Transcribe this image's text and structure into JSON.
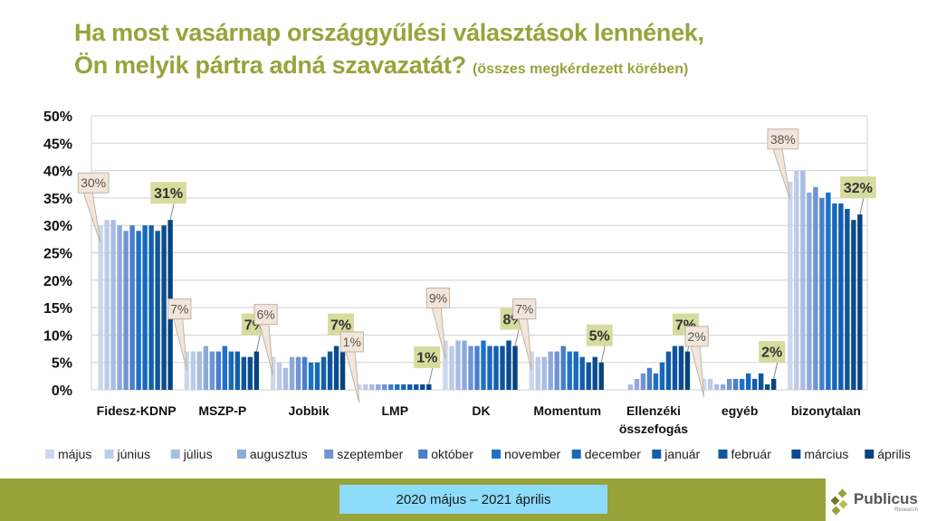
{
  "title": {
    "line1": "Ha most vasárnap országgyűlési választások lennének,",
    "line2": "Ön melyik pártra adná szavazatát?",
    "subtitle": "(összes megkérdezett körében)"
  },
  "footer": {
    "period": "2020 május – 2021 április",
    "logo_name": "Publicus",
    "logo_sub": "Research"
  },
  "colors": {
    "title": "#98a33a",
    "footer_bar": "#98a33a",
    "period_box": "#8ddcfb",
    "callout_first_bg": "#f2e6da",
    "callout_last_bg": "#d6dc9d"
  },
  "chart_data": {
    "type": "bar",
    "title": "Ha most vasárnap országgyűlési választások lennének, Ön melyik pártra adná szavazatát?",
    "xlabel": "",
    "ylabel": "",
    "ylim": [
      0,
      50
    ],
    "yticks": [
      "0%",
      "5%",
      "10%",
      "15%",
      "20%",
      "25%",
      "30%",
      "35%",
      "40%",
      "45%",
      "50%"
    ],
    "ytick_step": 5,
    "grid": true,
    "legend_position": "bottom",
    "categories": [
      [
        "Fidesz-KDNP"
      ],
      [
        "MSZP-P"
      ],
      [
        "Jobbik"
      ],
      [
        "LMP"
      ],
      [
        "DK"
      ],
      [
        "Momentum"
      ],
      [
        "Ellenzéki",
        "összefogás"
      ],
      [
        "egyéb"
      ],
      [
        "bizonytalan"
      ]
    ],
    "series": [
      {
        "name": "május",
        "color": "#cdd7ec",
        "values": [
          30,
          7,
          6,
          1,
          9,
          7,
          null,
          2,
          38
        ]
      },
      {
        "name": "június",
        "color": "#bccbe8",
        "values": [
          31,
          7,
          5,
          1,
          8,
          6,
          null,
          2,
          40
        ]
      },
      {
        "name": "július",
        "color": "#a9bce2",
        "values": [
          31,
          7,
          4,
          1,
          9,
          6,
          1,
          1,
          40
        ]
      },
      {
        "name": "augusztus",
        "color": "#8eaadb",
        "values": [
          30,
          8,
          6,
          1,
          9,
          7,
          2,
          1,
          36
        ]
      },
      {
        "name": "szeptember",
        "color": "#6f93d4",
        "values": [
          29,
          7,
          6,
          1,
          8,
          7,
          3,
          2,
          37
        ]
      },
      {
        "name": "október",
        "color": "#4a7dcb",
        "values": [
          30,
          7,
          6,
          1,
          8,
          8,
          4,
          2,
          35
        ]
      },
      {
        "name": "november",
        "color": "#1c72c8",
        "values": [
          29,
          8,
          5,
          1,
          9,
          7,
          3,
          2,
          36
        ]
      },
      {
        "name": "december",
        "color": "#1868bb",
        "values": [
          30,
          7,
          5,
          1,
          8,
          7,
          5,
          3,
          34
        ]
      },
      {
        "name": "január",
        "color": "#135eac",
        "values": [
          30,
          7,
          6,
          1,
          8,
          6,
          7,
          2,
          34
        ]
      },
      {
        "name": "február",
        "color": "#0f559d",
        "values": [
          29,
          6,
          7,
          1,
          8,
          5,
          8,
          3,
          33
        ]
      },
      {
        "name": "március",
        "color": "#0b4c8f",
        "values": [
          30,
          6,
          8,
          1,
          9,
          6,
          8,
          1,
          31
        ]
      },
      {
        "name": "április",
        "color": "#08437f",
        "values": [
          31,
          7,
          7,
          1,
          8,
          5,
          7,
          2,
          32
        ]
      }
    ],
    "annotations": [
      {
        "category": 0,
        "series": 0,
        "text": "30%",
        "style": "first"
      },
      {
        "category": 0,
        "series": 11,
        "text": "31%",
        "style": "last"
      },
      {
        "category": 1,
        "series": 0,
        "text": "7%",
        "style": "first"
      },
      {
        "category": 1,
        "series": 11,
        "text": "7%",
        "style": "last"
      },
      {
        "category": 2,
        "series": 0,
        "text": "6%",
        "style": "first"
      },
      {
        "category": 2,
        "series": 11,
        "text": "7%",
        "style": "last"
      },
      {
        "category": 3,
        "series": 0,
        "text": "1%",
        "style": "first"
      },
      {
        "category": 3,
        "series": 11,
        "text": "1%",
        "style": "last"
      },
      {
        "category": 4,
        "series": 0,
        "text": "9%",
        "style": "first"
      },
      {
        "category": 4,
        "series": 11,
        "text": "8%",
        "style": "last"
      },
      {
        "category": 5,
        "series": 0,
        "text": "7%",
        "style": "first"
      },
      {
        "category": 5,
        "series": 11,
        "text": "5%",
        "style": "last"
      },
      {
        "category": 6,
        "series": 11,
        "text": "7%",
        "style": "last"
      },
      {
        "category": 7,
        "series": 0,
        "text": "2%",
        "style": "first"
      },
      {
        "category": 7,
        "series": 11,
        "text": "2%",
        "style": "last"
      },
      {
        "category": 8,
        "series": 0,
        "text": "38%",
        "style": "first"
      },
      {
        "category": 8,
        "series": 11,
        "text": "32%",
        "style": "last"
      }
    ]
  }
}
